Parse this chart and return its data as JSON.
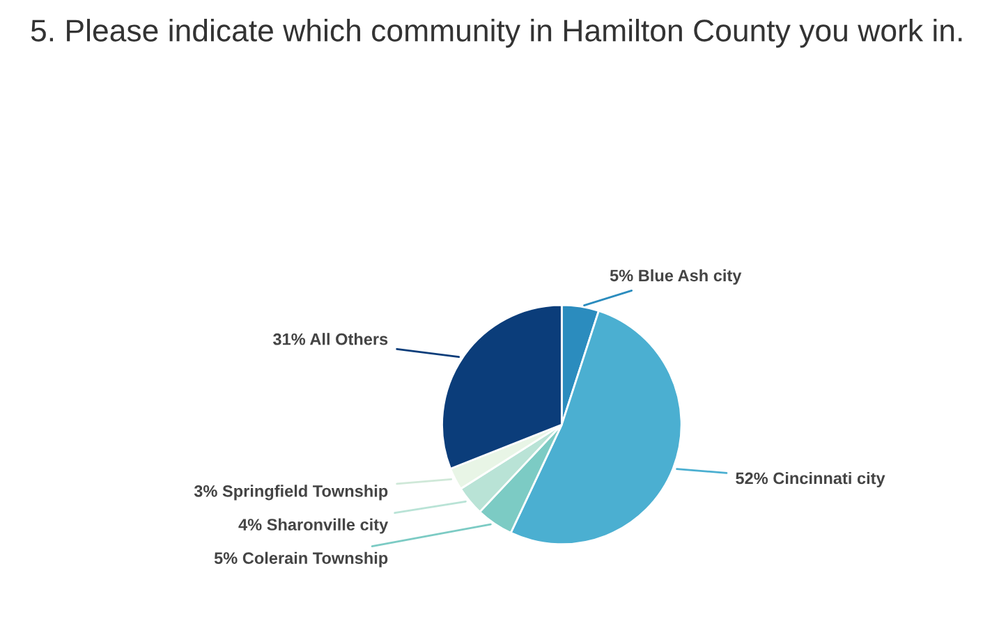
{
  "chart_data": {
    "type": "pie",
    "title": "5. Please indicate which community in Hamilton County you work in.",
    "categories": [
      "5% Blue Ash city",
      "52% Cincinnati city",
      "5% Colerain Township",
      "4% Sharonville city",
      "3% Springfield Township",
      "31% All Others"
    ],
    "values": [
      5,
      52,
      5,
      4,
      3,
      31
    ],
    "colors": [
      "#2b8cbe",
      "#4bafd1",
      "#7ccbc4",
      "#b9e3d6",
      "#e8f5e6",
      "#0b3d7a"
    ],
    "legend": false
  }
}
